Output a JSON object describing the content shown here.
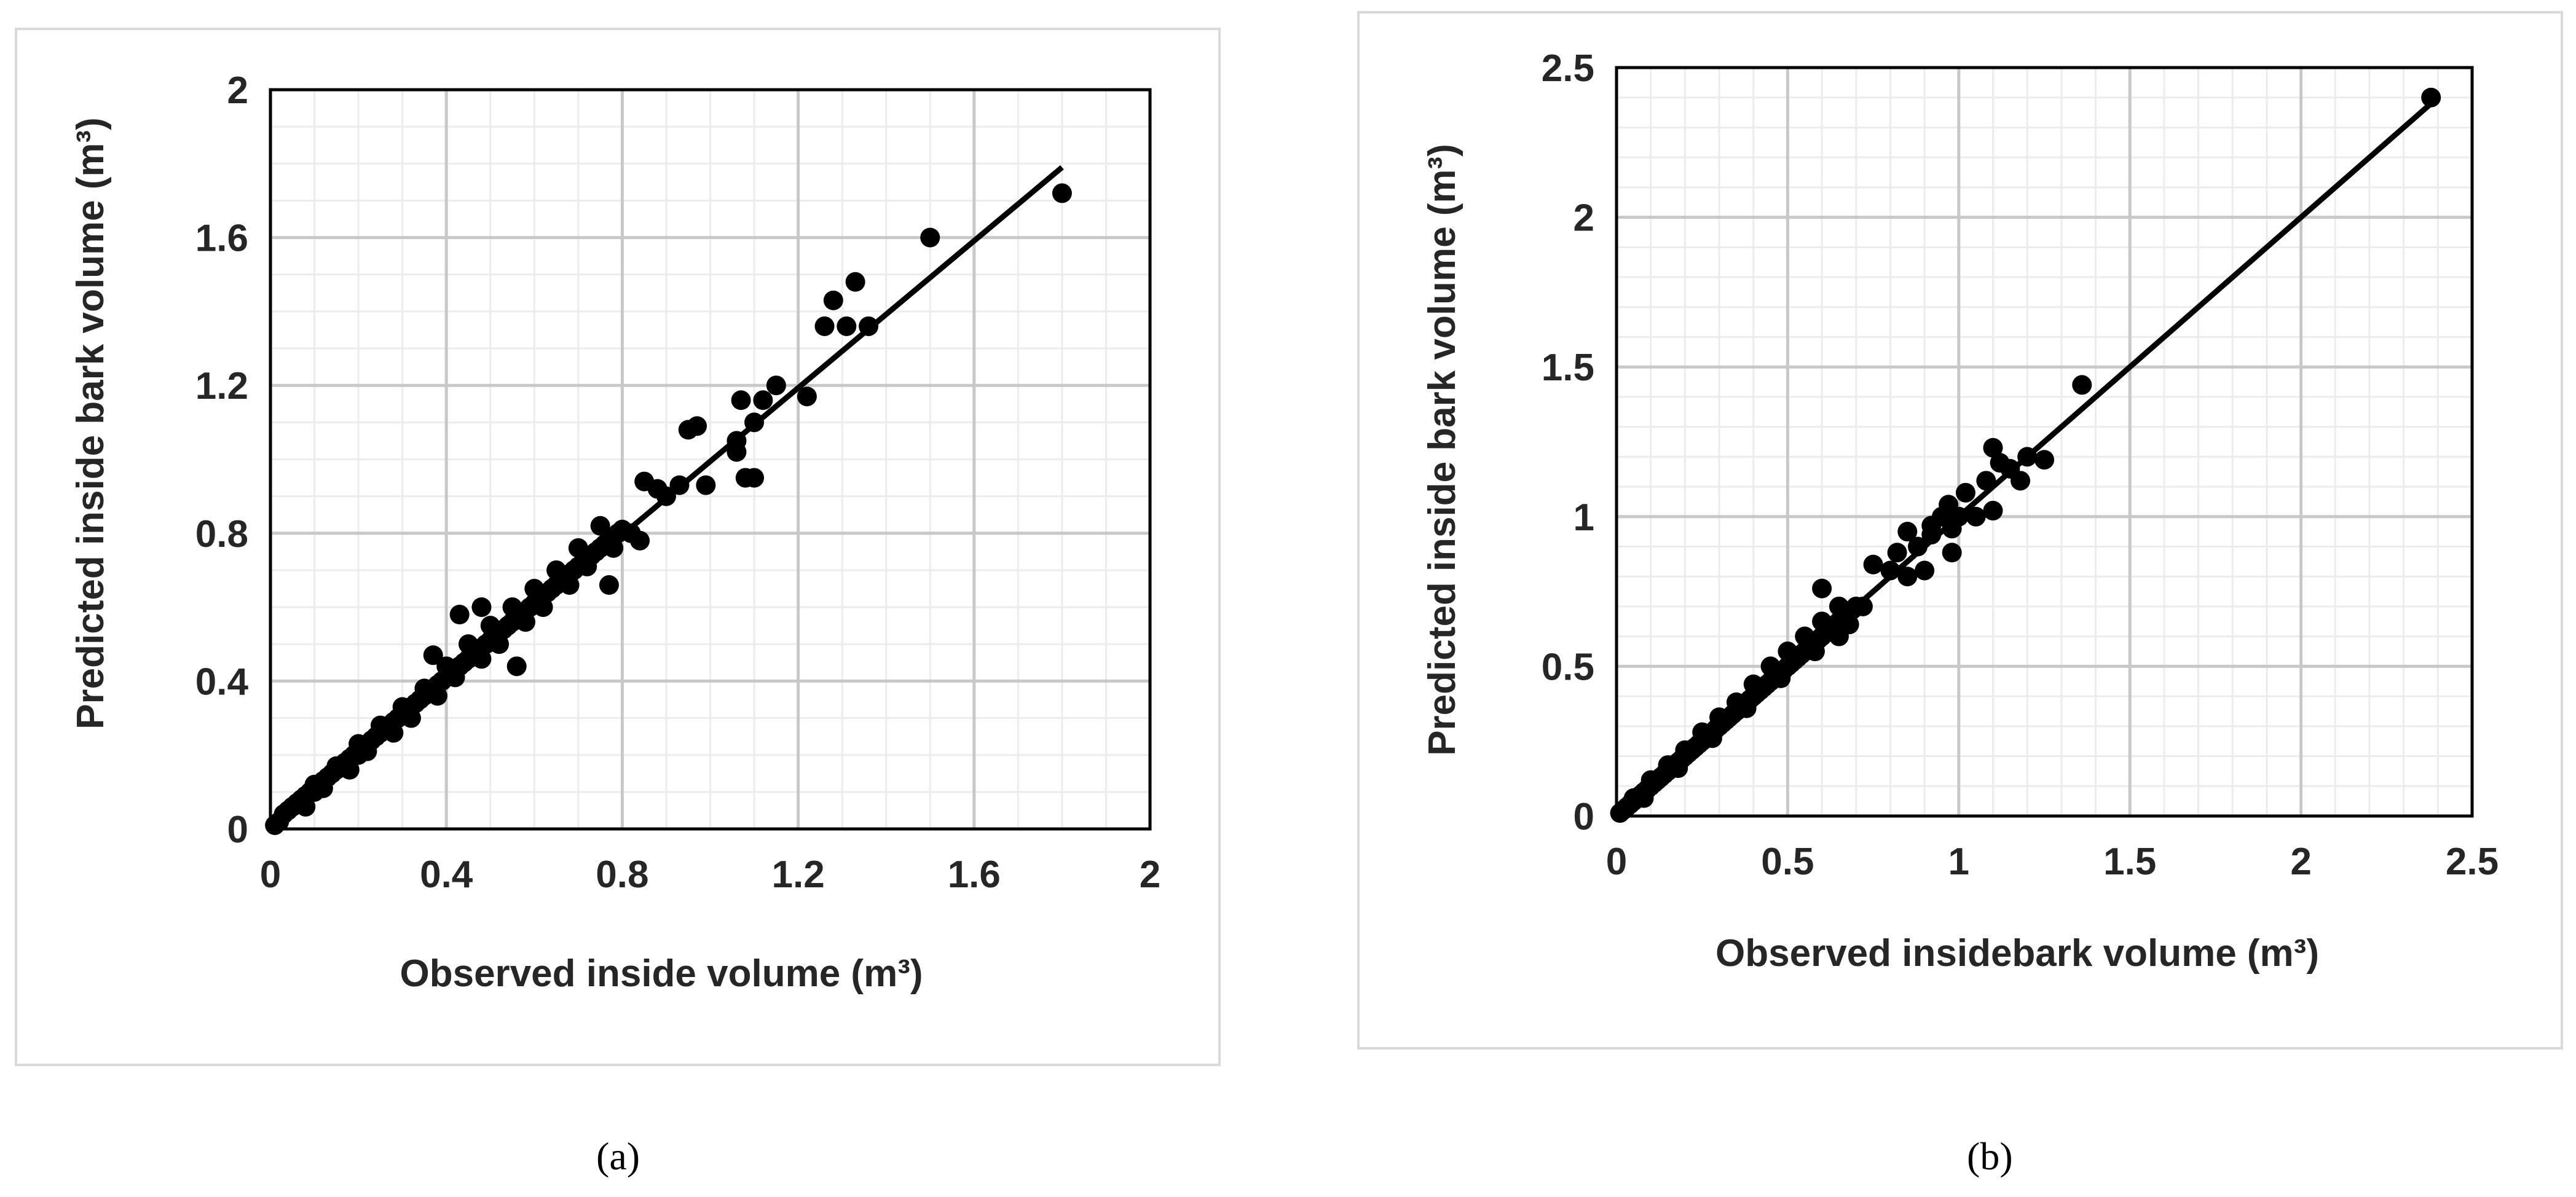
{
  "chart_data": [
    {
      "id": "a",
      "type": "scatter",
      "caption": "(a)",
      "xlabel": "Observed inside volume (m³)",
      "ylabel": "Predicted inside bark volume (m³)",
      "xlim": [
        0,
        2
      ],
      "ylim": [
        0,
        2
      ],
      "major_step": 0.4,
      "minor_step": 0.1,
      "xticks": [
        "0",
        "0.4",
        "0.8",
        "1.2",
        "1.6",
        "2"
      ],
      "yticks": [
        "0",
        "0.4",
        "0.8",
        "1.2",
        "1.6",
        "2"
      ],
      "grid": true,
      "fit_line": {
        "x": [
          0,
          1.8
        ],
        "y": [
          0,
          1.79
        ]
      },
      "points": {
        "x": [
          0.01,
          0.02,
          0.03,
          0.04,
          0.05,
          0.06,
          0.07,
          0.08,
          0.09,
          0.1,
          0.11,
          0.12,
          0.13,
          0.14,
          0.15,
          0.16,
          0.17,
          0.18,
          0.19,
          0.2,
          0.21,
          0.22,
          0.23,
          0.24,
          0.25,
          0.26,
          0.27,
          0.28,
          0.29,
          0.3,
          0.31,
          0.32,
          0.33,
          0.34,
          0.35,
          0.36,
          0.37,
          0.38,
          0.39,
          0.4,
          0.41,
          0.42,
          0.43,
          0.44,
          0.45,
          0.46,
          0.47,
          0.48,
          0.49,
          0.5,
          0.51,
          0.52,
          0.53,
          0.54,
          0.55,
          0.56,
          0.57,
          0.58,
          0.59,
          0.6,
          0.61,
          0.62,
          0.63,
          0.64,
          0.65,
          0.66,
          0.67,
          0.68,
          0.69,
          0.7,
          0.71,
          0.72,
          0.73,
          0.74,
          0.75,
          0.76,
          0.77,
          0.78,
          0.79,
          0.8,
          0.05,
          0.1,
          0.15,
          0.2,
          0.25,
          0.3,
          0.35,
          0.4,
          0.45,
          0.5,
          0.55,
          0.6,
          0.65,
          0.7,
          0.75,
          0.08,
          0.12,
          0.18,
          0.22,
          0.28,
          0.32,
          0.38,
          0.42,
          0.48,
          0.52,
          0.58,
          0.62,
          0.68,
          0.72,
          0.78,
          0.43,
          0.37,
          0.56,
          0.48,
          0.77,
          0.82,
          0.85,
          0.9,
          0.93,
          0.95,
          0.97,
          0.99,
          0.88,
          0.84,
          1.06,
          1.07,
          1.08,
          1.1,
          1.12,
          1.15,
          1.22,
          1.06,
          1.1,
          1.26,
          1.28,
          1.31,
          1.33,
          1.36,
          1.5,
          1.8
        ],
        "y": [
          0.01,
          0.02,
          0.04,
          0.05,
          0.06,
          0.07,
          0.08,
          0.09,
          0.1,
          0.1,
          0.12,
          0.13,
          0.14,
          0.15,
          0.16,
          0.17,
          0.18,
          0.19,
          0.2,
          0.2,
          0.22,
          0.23,
          0.24,
          0.25,
          0.26,
          0.27,
          0.28,
          0.29,
          0.3,
          0.31,
          0.32,
          0.33,
          0.34,
          0.35,
          0.36,
          0.37,
          0.38,
          0.39,
          0.4,
          0.41,
          0.42,
          0.43,
          0.44,
          0.45,
          0.46,
          0.47,
          0.48,
          0.49,
          0.5,
          0.51,
          0.52,
          0.53,
          0.54,
          0.55,
          0.56,
          0.57,
          0.58,
          0.59,
          0.6,
          0.61,
          0.62,
          0.63,
          0.64,
          0.65,
          0.66,
          0.67,
          0.68,
          0.69,
          0.7,
          0.71,
          0.72,
          0.73,
          0.74,
          0.75,
          0.76,
          0.77,
          0.78,
          0.79,
          0.8,
          0.81,
          0.06,
          0.12,
          0.17,
          0.23,
          0.28,
          0.33,
          0.38,
          0.44,
          0.5,
          0.55,
          0.6,
          0.65,
          0.7,
          0.76,
          0.82,
          0.06,
          0.11,
          0.16,
          0.21,
          0.26,
          0.3,
          0.36,
          0.41,
          0.46,
          0.5,
          0.56,
          0.6,
          0.66,
          0.71,
          0.76,
          0.58,
          0.47,
          0.44,
          0.6,
          0.66,
          0.8,
          0.94,
          0.9,
          0.93,
          1.08,
          1.09,
          0.93,
          0.92,
          0.78,
          1.05,
          1.16,
          0.95,
          1.1,
          1.16,
          1.2,
          1.17,
          1.02,
          0.95,
          1.36,
          1.43,
          1.36,
          1.48,
          1.36,
          1.6,
          1.72
        ]
      }
    },
    {
      "id": "b",
      "type": "scatter",
      "caption": "(b)",
      "xlabel": "Observed insidebark volume (m³)",
      "ylabel": "Predicted inside bark volume (m³)",
      "xlim": [
        0,
        2.5
      ],
      "ylim": [
        0,
        2.5
      ],
      "major_step": 0.5,
      "minor_step": 0.1,
      "xticks": [
        "0",
        "0.5",
        "1",
        "1.5",
        "2",
        "2.5"
      ],
      "yticks": [
        "0",
        "0.5",
        "1",
        "1.5",
        "2",
        "2.5"
      ],
      "grid": true,
      "fit_line": {
        "x": [
          0,
          2.4
        ],
        "y": [
          0,
          2.4
        ]
      },
      "points": {
        "x": [
          0.01,
          0.02,
          0.03,
          0.04,
          0.05,
          0.06,
          0.07,
          0.08,
          0.09,
          0.1,
          0.11,
          0.12,
          0.13,
          0.14,
          0.15,
          0.16,
          0.17,
          0.18,
          0.19,
          0.2,
          0.21,
          0.22,
          0.23,
          0.24,
          0.25,
          0.26,
          0.27,
          0.28,
          0.29,
          0.3,
          0.31,
          0.32,
          0.33,
          0.34,
          0.35,
          0.36,
          0.37,
          0.38,
          0.39,
          0.4,
          0.41,
          0.42,
          0.43,
          0.44,
          0.45,
          0.46,
          0.47,
          0.48,
          0.49,
          0.5,
          0.51,
          0.52,
          0.53,
          0.54,
          0.55,
          0.56,
          0.57,
          0.58,
          0.59,
          0.6,
          0.61,
          0.62,
          0.63,
          0.64,
          0.65,
          0.66,
          0.67,
          0.68,
          0.69,
          0.7,
          0.05,
          0.1,
          0.15,
          0.2,
          0.25,
          0.3,
          0.35,
          0.4,
          0.45,
          0.5,
          0.55,
          0.6,
          0.65,
          0.08,
          0.18,
          0.28,
          0.38,
          0.48,
          0.58,
          0.68,
          0.6,
          0.65,
          0.72,
          0.75,
          0.8,
          0.82,
          0.85,
          0.88,
          0.9,
          0.92,
          0.95,
          0.97,
          0.98,
          1.0,
          1.02,
          1.05,
          1.08,
          1.1,
          1.12,
          1.15,
          1.18,
          1.2,
          1.25,
          0.92,
          0.98,
          0.85,
          1.1,
          1.36,
          2.38
        ],
        "y": [
          0.01,
          0.02,
          0.03,
          0.04,
          0.05,
          0.06,
          0.07,
          0.08,
          0.09,
          0.1,
          0.11,
          0.12,
          0.13,
          0.14,
          0.15,
          0.16,
          0.17,
          0.18,
          0.19,
          0.2,
          0.21,
          0.22,
          0.23,
          0.24,
          0.25,
          0.26,
          0.27,
          0.28,
          0.29,
          0.3,
          0.31,
          0.32,
          0.33,
          0.34,
          0.35,
          0.36,
          0.37,
          0.38,
          0.39,
          0.4,
          0.41,
          0.42,
          0.43,
          0.44,
          0.45,
          0.46,
          0.47,
          0.48,
          0.49,
          0.5,
          0.51,
          0.52,
          0.53,
          0.54,
          0.55,
          0.56,
          0.57,
          0.58,
          0.59,
          0.6,
          0.61,
          0.62,
          0.63,
          0.64,
          0.65,
          0.66,
          0.67,
          0.68,
          0.69,
          0.7,
          0.06,
          0.12,
          0.17,
          0.22,
          0.28,
          0.33,
          0.38,
          0.44,
          0.5,
          0.55,
          0.6,
          0.65,
          0.7,
          0.06,
          0.16,
          0.26,
          0.36,
          0.46,
          0.55,
          0.64,
          0.76,
          0.6,
          0.7,
          0.84,
          0.82,
          0.88,
          0.8,
          0.9,
          0.82,
          0.94,
          1.0,
          1.04,
          0.96,
          1.0,
          1.08,
          1.0,
          1.12,
          1.23,
          1.18,
          1.16,
          1.12,
          1.2,
          1.19,
          0.97,
          0.88,
          0.95,
          1.02,
          1.44,
          2.4
        ]
      }
    }
  ]
}
